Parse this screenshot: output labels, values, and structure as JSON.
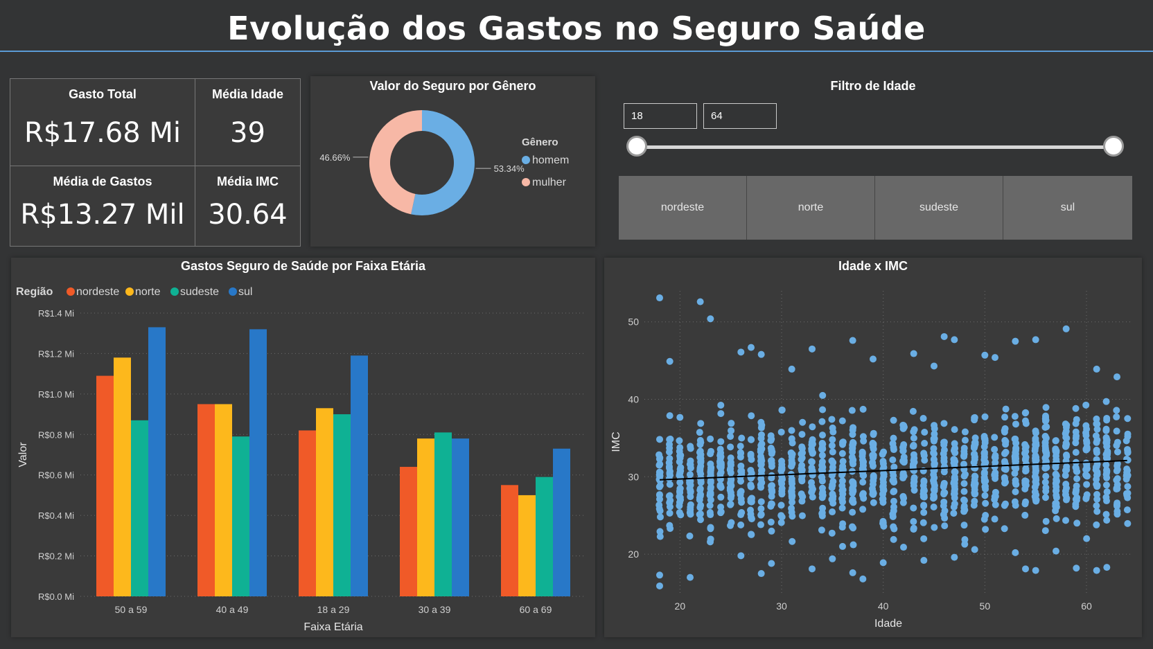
{
  "header": {
    "title": "Evolução dos Gastos no Seguro Saúde"
  },
  "kpis": {
    "gasto_total": {
      "label": "Gasto Total",
      "value": "R$17.68 Mi"
    },
    "media_idade": {
      "label": "Média Idade",
      "value": "39"
    },
    "media_gastos": {
      "label": "Média de Gastos",
      "value": "R$13.27 Mil"
    },
    "media_imc": {
      "label": "Média IMC",
      "value": "30.64"
    }
  },
  "filtro": {
    "title": "Filtro de Idade",
    "min": "18",
    "max": "64",
    "regions": [
      "nordeste",
      "norte",
      "sudeste",
      "sul"
    ]
  },
  "colors": {
    "nordeste": "#f05a28",
    "norte": "#fdb81c",
    "sudeste": "#0fb194",
    "sul": "#2878c8",
    "homem": "#6aaee4",
    "mulher": "#f7b8a6",
    "scatter": "#6aaee4"
  },
  "chart_data": [
    {
      "type": "pie",
      "title": "Valor do Seguro por Gênero",
      "legend_title": "Gênero",
      "labels": [
        "homem",
        "mulher"
      ],
      "values": [
        53.34,
        46.66
      ],
      "data_labels": [
        "53.34%",
        "46.66%"
      ],
      "legend_position": "right"
    },
    {
      "type": "bar",
      "title": "Gastos Seguro de Saúde por Faixa Etária",
      "legend_title": "Região",
      "legend_position": "top-left",
      "xlabel": "Faixa Etária",
      "ylabel": "Valor",
      "categories": [
        "50 a 59",
        "40 a 49",
        "18 a 29",
        "30 a 39",
        "60 a 69"
      ],
      "series": [
        {
          "name": "nordeste",
          "values": [
            1.09,
            0.95,
            0.82,
            0.64,
            0.55
          ]
        },
        {
          "name": "norte",
          "values": [
            1.18,
            0.95,
            0.93,
            0.78,
            0.5
          ]
        },
        {
          "name": "sudeste",
          "values": [
            0.87,
            0.79,
            0.9,
            0.81,
            0.59
          ]
        },
        {
          "name": "sul",
          "values": [
            1.33,
            1.32,
            1.19,
            0.78,
            0.73
          ]
        }
      ],
      "yticks": [
        "R$0.0 Mi",
        "R$0.2 Mi",
        "R$0.4 Mi",
        "R$0.6 Mi",
        "R$0.8 Mi",
        "R$1.0 Mi",
        "R$1.2 Mi",
        "R$1.4 Mi"
      ],
      "ylim": [
        0,
        1.4
      ],
      "grid": true
    },
    {
      "type": "scatter",
      "title": "Idade x IMC",
      "xlabel": "Idade",
      "ylabel": "IMC",
      "xlim": [
        16.5,
        64.5
      ],
      "ylim": [
        15,
        54
      ],
      "xticks": [
        20,
        30,
        40,
        50,
        60
      ],
      "yticks": [
        20,
        30,
        40,
        50
      ],
      "trendline": {
        "x": [
          18,
          64
        ],
        "y": [
          29.6,
          32.1
        ]
      },
      "grid": true,
      "points": [
        [
          18,
          53.1
        ],
        [
          22,
          52.6
        ],
        [
          23,
          50.4
        ],
        [
          18,
          17.3
        ],
        [
          18,
          15.9
        ],
        [
          19,
          44.9
        ],
        [
          26,
          46.1
        ],
        [
          27,
          46.7
        ],
        [
          28,
          45.8
        ],
        [
          58,
          49.1
        ],
        [
          55,
          47.7
        ],
        [
          53,
          47.5
        ],
        [
          46,
          48.1
        ],
        [
          47,
          47.7
        ],
        [
          37,
          47.6
        ],
        [
          39,
          45.2
        ],
        [
          33,
          46.5
        ],
        [
          31,
          43.9
        ],
        [
          50,
          45.7
        ],
        [
          51,
          45.4
        ],
        [
          45,
          44.3
        ],
        [
          43,
          45.9
        ],
        [
          61,
          43.9
        ],
        [
          63,
          42.9
        ],
        [
          28,
          17.5
        ],
        [
          38,
          16.8
        ],
        [
          37,
          17.6
        ],
        [
          55,
          17.9
        ],
        [
          54,
          18.1
        ],
        [
          59,
          18.2
        ],
        [
          61,
          17.9
        ],
        [
          62,
          18.3
        ],
        [
          40,
          18.9
        ],
        [
          44,
          19.2
        ],
        [
          21,
          17.0
        ],
        [
          26,
          19.8
        ],
        [
          47,
          19.6
        ],
        [
          53,
          20.2
        ],
        [
          29,
          18.8
        ],
        [
          33,
          18.1
        ],
        [
          35,
          19.4
        ],
        [
          49,
          20.6
        ],
        [
          57,
          20.4
        ],
        [
          36,
          21.0
        ],
        [
          42,
          20.9
        ]
      ],
      "bulk": {
        "x_range": [
          18,
          64
        ],
        "y_center": 30.6,
        "y_spread": 6.1,
        "n": 1290
      }
    }
  ]
}
